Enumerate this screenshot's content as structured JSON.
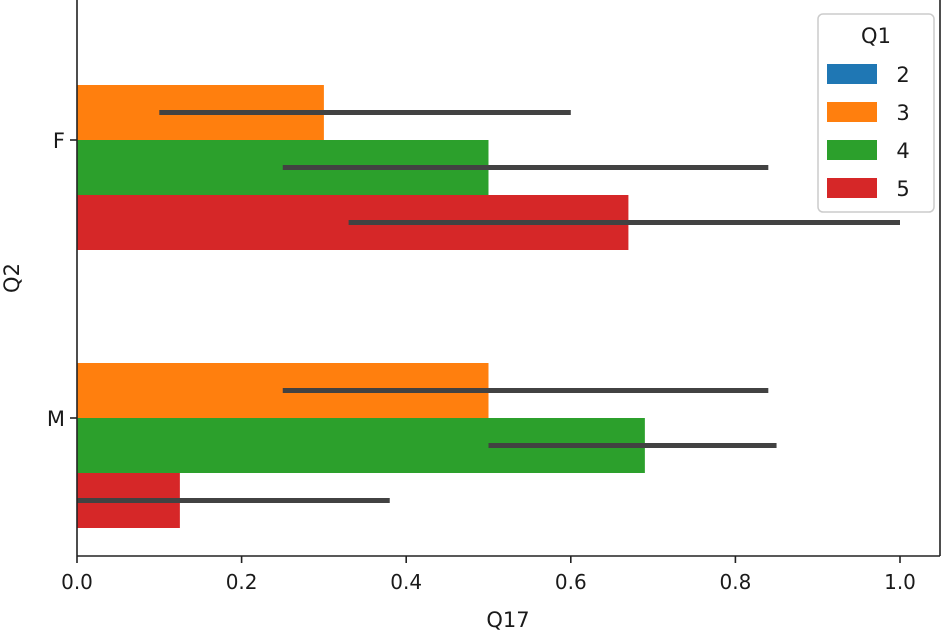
{
  "chart_data": {
    "type": "bar",
    "orientation": "horizontal",
    "title": "",
    "xlabel": "Q17",
    "ylabel": "Q2",
    "categories": [
      "F",
      "M"
    ],
    "xlim": [
      0.0,
      1.0
    ],
    "xticks": [
      "0.0",
      "0.2",
      "0.4",
      "0.6",
      "0.8",
      "1.0"
    ],
    "grid": false,
    "legend": {
      "title": "Q1",
      "position": "top-right"
    },
    "series": [
      {
        "name": "2",
        "color": "#1f77b4",
        "values": [
          null,
          null
        ],
        "err_low": [
          null,
          null
        ],
        "err_high": [
          null,
          null
        ]
      },
      {
        "name": "3",
        "color": "#ff7f0e",
        "values": [
          0.3,
          0.5
        ],
        "err_low": [
          0.1,
          0.25
        ],
        "err_high": [
          0.6,
          0.84
        ]
      },
      {
        "name": "4",
        "color": "#2ca02c",
        "values": [
          0.5,
          0.69
        ],
        "err_low": [
          0.25,
          0.5
        ],
        "err_high": [
          0.84,
          0.85
        ]
      },
      {
        "name": "5",
        "color": "#d62728",
        "values": [
          0.67,
          0.125
        ],
        "err_low": [
          0.33,
          0.0
        ],
        "err_high": [
          1.0,
          0.38
        ]
      }
    ]
  }
}
